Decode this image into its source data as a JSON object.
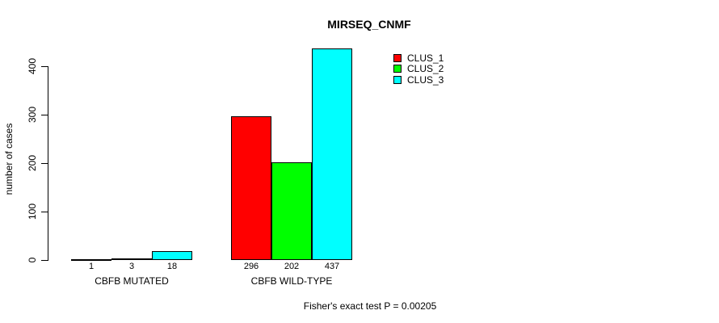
{
  "chart_data": {
    "type": "bar",
    "title": "MIRSEQ_CNMF",
    "xlabel": "",
    "ylabel": "number of cases",
    "ylim": [
      0,
      440
    ],
    "yticks": [
      0,
      100,
      200,
      300,
      400
    ],
    "grid": false,
    "legend_position": "top-right-inside",
    "categories": [
      "CBFB MUTATED",
      "CBFB WILD-TYPE"
    ],
    "series": [
      {
        "name": "CLUS_1",
        "color": "#FF0000",
        "values": [
          1,
          296
        ]
      },
      {
        "name": "CLUS_2",
        "color": "#00FF00",
        "values": [
          3,
          202
        ]
      },
      {
        "name": "CLUS_3",
        "color": "#00FFFF",
        "values": [
          18,
          437
        ]
      }
    ],
    "bar_value_labels": [
      [
        "1",
        "3",
        "18"
      ],
      [
        "296",
        "202",
        "437"
      ]
    ],
    "background": "#FFFFFF",
    "axis_color": "#000000"
  },
  "footnote": {
    "text": "Fisher's exact test P = 0.00205"
  }
}
